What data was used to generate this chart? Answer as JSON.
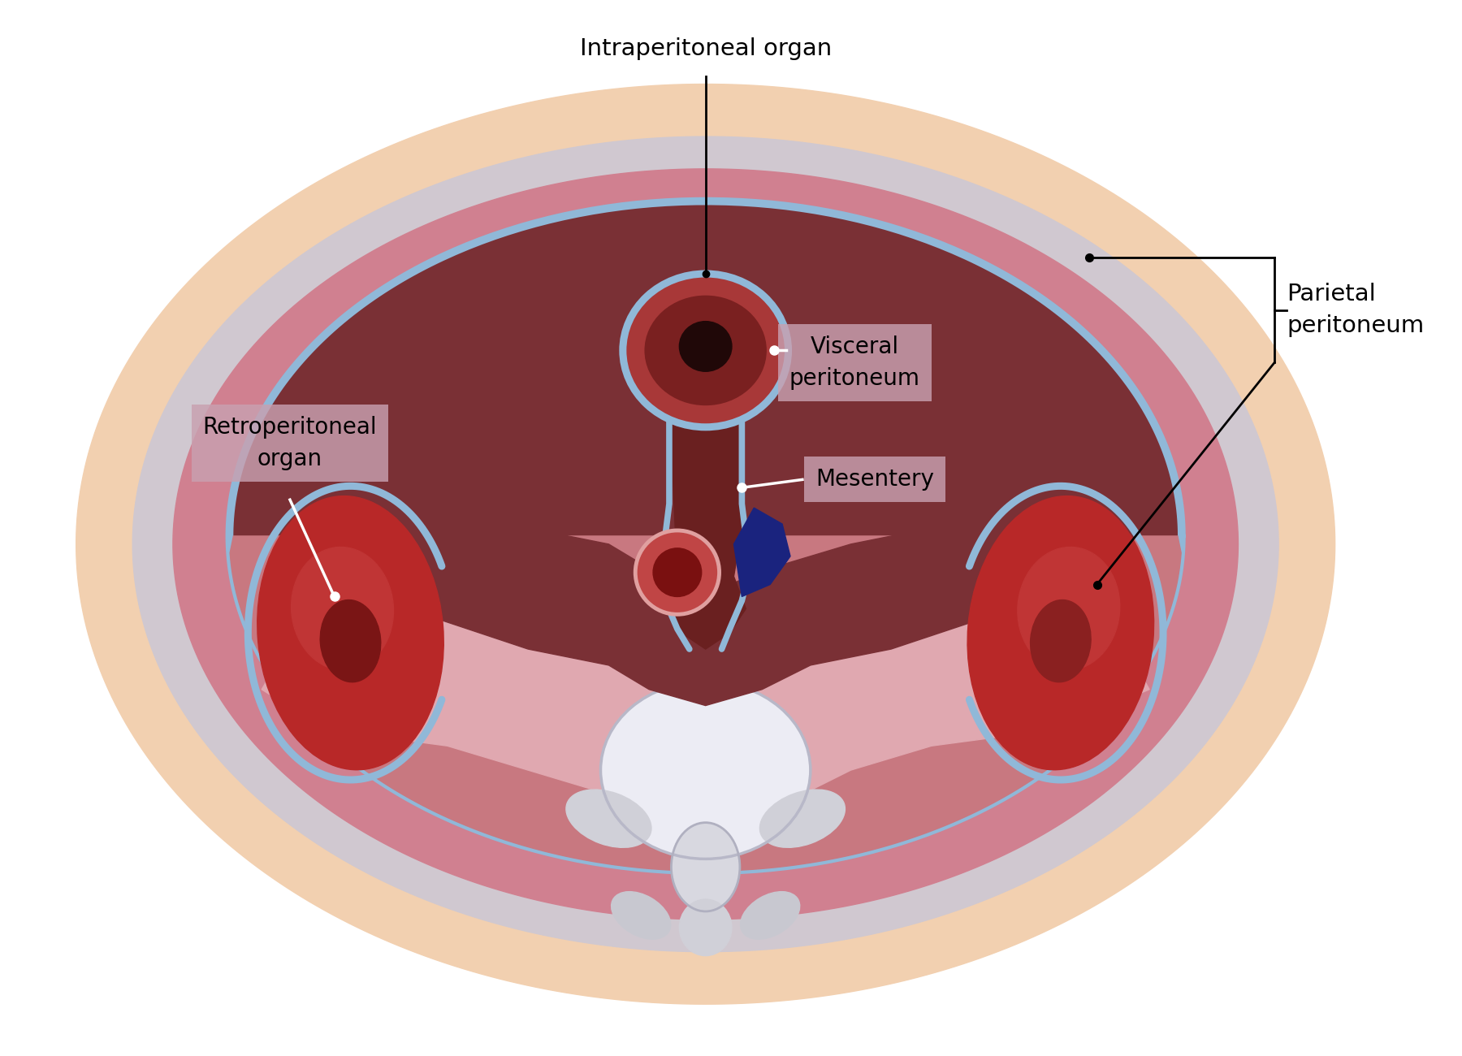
{
  "bg_color": "#ffffff",
  "skin_outer_color": "#f2d0b0",
  "gray_layer_color": "#c8c0c8",
  "pink_muscle_color": "#d08090",
  "cavity_color": "#7a3035",
  "blue_line_color": "#90b8d8",
  "kidney_red": "#c03030",
  "kidney_dark": "#7a1010",
  "vein_blue": "#1a237e",
  "spine_white": "#e8e8f0",
  "spine_gray": "#c0c0c8",
  "muscle_pink": "#e0a8b0",
  "label_box": "#c8a0b0",
  "organ_red1": "#a03030",
  "organ_red2": "#6a1a1a",
  "vessel_red": "#c04050",
  "vessel_ring": "#e09090",
  "anno_intraperitoneal": "Intraperitoneal organ",
  "anno_visceral": "Visceral\nperitoneum",
  "anno_mesentery": "Mesentery",
  "anno_retro": "Retroperitoneal\norgan",
  "anno_parietal": "Parietal\nperitoneum"
}
